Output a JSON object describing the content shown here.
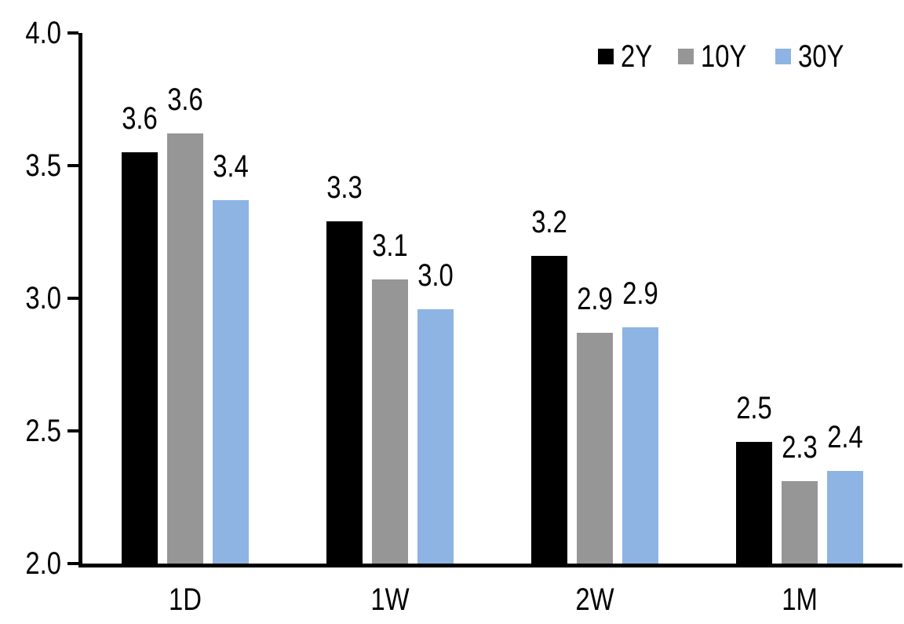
{
  "chart_data": {
    "type": "bar",
    "title": "",
    "xlabel": "",
    "ylabel": "",
    "categories": [
      "1D",
      "1W",
      "2W",
      "1M"
    ],
    "series": [
      {
        "name": "2Y",
        "color": "#000000",
        "values": [
          3.55,
          3.29,
          3.16,
          2.46
        ],
        "labels": [
          "3.6",
          "3.3",
          "3.2",
          "2.5"
        ]
      },
      {
        "name": "10Y",
        "color": "#969696",
        "values": [
          3.62,
          3.07,
          2.87,
          2.31
        ],
        "labels": [
          "3.6",
          "3.1",
          "2.9",
          "2.3"
        ]
      },
      {
        "name": "30Y",
        "color": "#8DB4E2",
        "values": [
          3.37,
          2.96,
          2.89,
          2.35
        ],
        "labels": [
          "3.4",
          "3.0",
          "2.9",
          "2.4"
        ]
      }
    ],
    "ylim": [
      2.0,
      4.0
    ],
    "ytick_labels": [
      "4.0",
      "3.5",
      "3.0",
      "2.5",
      "2.0"
    ],
    "grid": false,
    "legend_position": "top-right",
    "axis_color": "#000000",
    "background_color": "#FFFFFF"
  }
}
